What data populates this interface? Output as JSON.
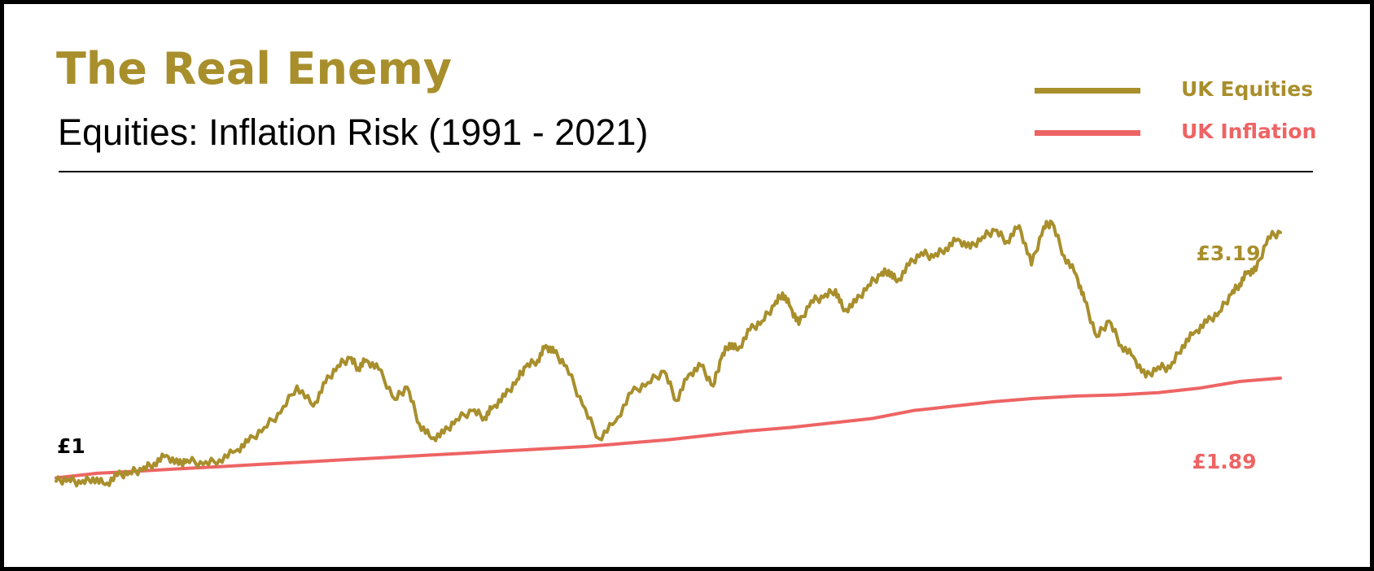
{
  "header": {
    "title": "The Real Enemy",
    "subtitle": "Equities: Inflation Risk (1991 - 2021)"
  },
  "legend": [
    {
      "label": "UK Equities",
      "color": "#a88f2c"
    },
    {
      "label": "UK Inflation",
      "color": "#ee6464"
    }
  ],
  "colors": {
    "equities": "#a88f2c",
    "inflation": "#ee6464",
    "start_label": "#000000"
  },
  "chart_data": {
    "type": "line",
    "title": "The Real Enemy",
    "subtitle": "Equities: Inflation Risk (1991 - 2021)",
    "xlabel": "",
    "ylabel": "",
    "xlim": [
      1991,
      2021
    ],
    "ylim": [
      0.8,
      3.45
    ],
    "grid": false,
    "legend_position": "top-right",
    "annotations": {
      "start": "£1",
      "equities_end": "£3.19",
      "inflation_end": "£1.89"
    },
    "series": [
      {
        "name": "UK Equities",
        "color": "#a88f2c",
        "x": [
          1991,
          1991.3,
          1991.6,
          1991.9,
          1992.2,
          1992.5,
          1992.8,
          1993.1,
          1993.4,
          1993.7,
          1994.0,
          1994.2,
          1994.6,
          1995.0,
          1995.4,
          1995.7,
          1996.1,
          1996.5,
          1996.9,
          1997.3,
          1997.6,
          1997.9,
          1998.2,
          1998.4,
          1998.6,
          1998.9,
          1999.3,
          1999.6,
          1999.9,
          2000.2,
          2000.5,
          2000.8,
          2001.2,
          2001.5,
          2001.7,
          2002.0,
          2002.3,
          2002.5,
          2002.8,
          2003.0,
          2003.2,
          2003.5,
          2003.9,
          2004.3,
          2004.7,
          2005.1,
          2005.5,
          2005.9,
          2006.2,
          2006.5,
          2006.8,
          2007.1,
          2007.3,
          2007.5,
          2007.7,
          2008.0,
          2008.3,
          2008.6,
          2008.8,
          2009.0,
          2009.2,
          2009.5,
          2009.8,
          2010.1,
          2010.3,
          2010.6,
          2010.9,
          2011.2,
          2011.4,
          2011.6,
          2011.9,
          2012.2,
          2012.5,
          2012.8,
          2013.1,
          2013.4,
          2013.7,
          2014.0,
          2014.3,
          2014.6,
          2014.9,
          2015.2,
          2015.4,
          2015.7,
          2016.0,
          2016.2,
          2016.5,
          2016.8,
          2017.1,
          2017.4,
          2017.7,
          2018.0,
          2018.3,
          2018.6,
          2018.9,
          2019.2,
          2019.5,
          2019.8,
          2020.0,
          2020.2,
          2020.4,
          2020.7,
          2021.0
        ],
        "values": [
          0.97,
          0.99,
          0.95,
          1.0,
          0.94,
          1.02,
          1.05,
          1.07,
          1.13,
          1.2,
          1.12,
          1.16,
          1.12,
          1.16,
          1.24,
          1.32,
          1.45,
          1.58,
          1.82,
          1.64,
          1.85,
          2.0,
          2.07,
          1.98,
          2.05,
          1.97,
          1.7,
          1.81,
          1.48,
          1.35,
          1.4,
          1.52,
          1.6,
          1.54,
          1.63,
          1.73,
          1.88,
          1.99,
          2.05,
          2.18,
          2.12,
          2.0,
          1.65,
          1.35,
          1.5,
          1.76,
          1.85,
          1.95,
          1.69,
          1.92,
          2.0,
          1.82,
          2.07,
          2.2,
          2.14,
          2.32,
          2.4,
          2.54,
          2.65,
          2.52,
          2.37,
          2.58,
          2.61,
          2.68,
          2.49,
          2.57,
          2.72,
          2.81,
          2.85,
          2.75,
          2.9,
          3.01,
          2.97,
          3.05,
          3.13,
          3.05,
          3.15,
          3.21,
          3.11,
          3.25,
          2.9,
          3.24,
          3.28,
          2.98,
          2.81,
          2.58,
          2.26,
          2.4,
          2.18,
          2.08,
          1.9,
          1.99,
          1.98,
          2.18,
          2.3,
          2.39,
          2.48,
          2.64,
          2.73,
          2.84,
          2.85,
          3.15,
          3.19
        ]
      },
      {
        "name": "UK Inflation",
        "color": "#ee6464",
        "x": [
          1991,
          1992,
          1993,
          1994,
          1995,
          1996,
          1997,
          1998,
          1999,
          2000,
          2001,
          2002,
          2003,
          2004,
          2005,
          2006,
          2007,
          2008,
          2009,
          2010,
          2011,
          2012,
          2013,
          2014,
          2015,
          2016,
          2017,
          2018,
          2019,
          2020,
          2021
        ],
        "values": [
          1.0,
          1.04,
          1.06,
          1.08,
          1.1,
          1.12,
          1.14,
          1.16,
          1.18,
          1.2,
          1.22,
          1.24,
          1.26,
          1.28,
          1.31,
          1.34,
          1.38,
          1.42,
          1.45,
          1.49,
          1.53,
          1.6,
          1.64,
          1.68,
          1.71,
          1.73,
          1.74,
          1.76,
          1.8,
          1.86,
          1.89
        ]
      }
    ]
  }
}
